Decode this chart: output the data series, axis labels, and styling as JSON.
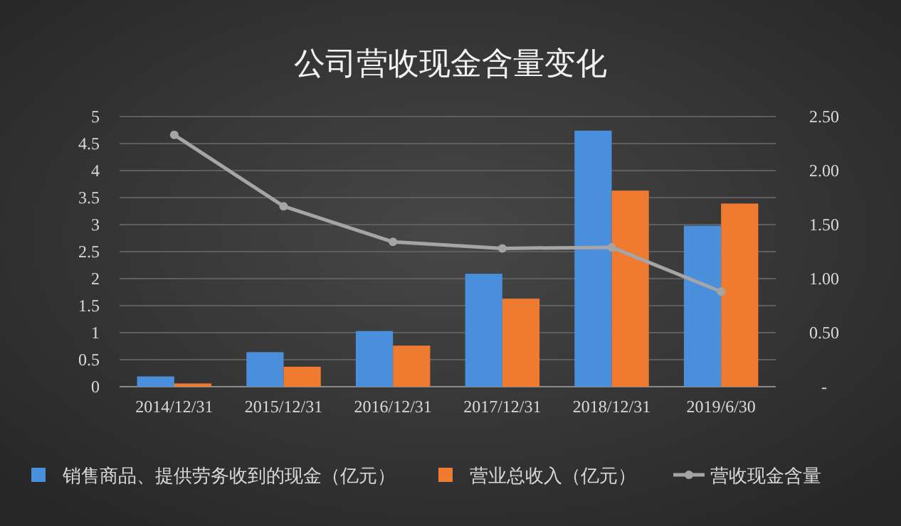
{
  "chart_data": {
    "type": "bar",
    "title": "公司营收现金含量变化",
    "categories": [
      "2014/12/31",
      "2015/12/31",
      "2016/12/31",
      "2017/12/31",
      "2018/12/31",
      "2019/6/30"
    ],
    "series": [
      {
        "name": "销售商品、提供劳务收到的现金（亿元）",
        "color": "#4a8fdc",
        "values": [
          0.19,
          0.64,
          1.03,
          2.09,
          4.74,
          2.98
        ]
      },
      {
        "name": "营业总收入（亿元）",
        "color": "#ee7b30",
        "values": [
          0.06,
          0.37,
          0.76,
          1.63,
          3.63,
          3.39
        ]
      },
      {
        "name": "营收现金含量",
        "type": "line",
        "axis": "y2",
        "color": "#a5a5a5",
        "marker": "circle",
        "values": [
          2.33,
          1.67,
          1.34,
          1.28,
          1.29,
          0.88
        ]
      }
    ],
    "ylim": [
      0,
      5
    ],
    "yticks": [
      0,
      0.5,
      1,
      1.5,
      2,
      2.5,
      3,
      3.5,
      4,
      4.5,
      5
    ],
    "y2lim": [
      0,
      2.5
    ],
    "y2ticks": [
      {
        "value": 0,
        "label": "-"
      },
      {
        "value": 0.5,
        "label": "0.50"
      },
      {
        "value": 1,
        "label": "1.00"
      },
      {
        "value": 1.5,
        "label": "1.50"
      },
      {
        "value": 2,
        "label": "2.00"
      },
      {
        "value": 2.5,
        "label": "2.50"
      }
    ],
    "grid": "y",
    "legend": "bottom"
  }
}
